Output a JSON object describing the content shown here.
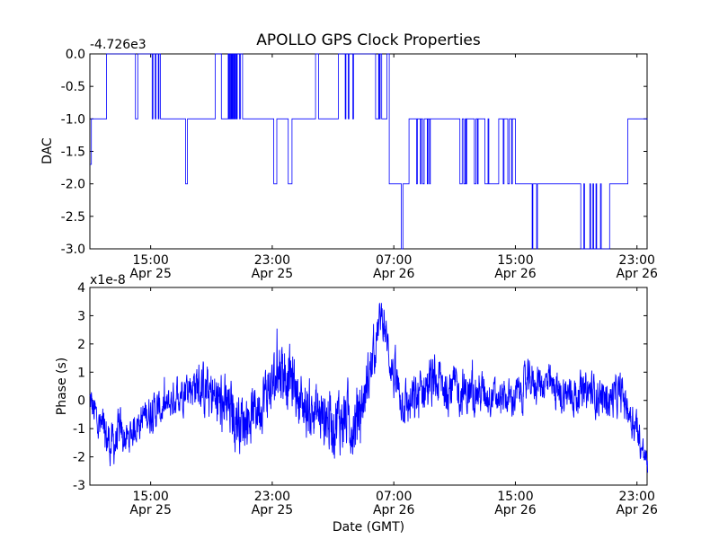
{
  "figure": {
    "title": "APOLLO GPS Clock Properties",
    "xlabel": "Date (GMT)"
  },
  "chart_data": [
    {
      "type": "line",
      "ylabel": "DAC",
      "offset_label": "-4.726e3",
      "xlim": [
        "2024-04-25T11:00:00Z",
        "2024-04-26T23:40:00Z"
      ],
      "ylim": [
        -3.0,
        0.0
      ],
      "yticks": [
        "-3.0",
        "-2.5",
        "-2.0",
        "-1.5",
        "-1.0",
        "-0.5",
        "0.0"
      ],
      "xticks": [
        {
          "time": "15:00",
          "date": "Apr 25"
        },
        {
          "time": "23:00",
          "date": "Apr 25"
        },
        {
          "time": "07:00",
          "date": "Apr 26"
        },
        {
          "time": "15:00",
          "date": "Apr 26"
        },
        {
          "time": "23:00",
          "date": "Apr 26"
        }
      ],
      "color": "#0000ff",
      "series_x_hours_from_11": [
        0.0,
        0.1,
        0.25,
        0.35,
        1.0,
        1.1,
        2.9,
        3.0,
        3.1,
        3.15,
        3.75,
        4.1,
        4.15,
        4.2,
        4.3,
        4.35,
        4.4,
        4.5,
        4.55,
        4.6,
        4.65,
        5.1,
        5.2,
        5.3,
        5.4,
        5.55,
        5.6,
        5.65,
        6.3,
        6.32,
        6.4,
        6.42,
        8.2,
        8.25,
        8.65,
        9.1,
        9.15,
        9.2,
        9.25,
        9.3,
        9.35,
        9.4,
        9.45,
        9.5,
        9.55,
        9.6,
        9.65,
        9.7,
        9.85,
        9.9,
        10.05,
        12.05,
        12.1,
        12.3,
        13.0,
        13.05,
        13.3,
        14.8,
        14.85,
        15.05,
        15.3,
        16.3,
        16.35,
        16.8,
        16.85,
        17.0,
        17.05,
        17.3,
        17.35,
        18.7,
        18.8,
        18.9,
        19.0,
        19.05,
        19.1,
        19.2,
        19.5,
        19.55,
        19.7,
        20.5,
        20.6,
        21.0,
        21.05,
        21.5,
        21.55,
        21.75,
        21.8,
        21.9,
        22.0,
        22.2,
        22.25,
        22.35,
        22.4,
        24.3,
        24.35,
        24.5,
        24.6,
        24.7,
        24.75,
        24.8,
        25.3,
        25.4,
        25.5,
        25.55,
        26.0,
        26.05,
        26.2,
        26.25,
        26.8,
        26.9,
        27.2,
        27.25,
        27.5,
        27.6,
        27.75,
        27.8,
        28.0,
        28.05,
        29.1,
        29.15,
        29.4,
        29.45,
        29.6,
        29.65,
        29.8,
        29.85,
        30.6,
        30.65,
        32.2,
        32.3,
        32.5,
        32.55,
        32.9,
        32.95,
        33.1,
        33.15,
        33.3,
        33.35,
        33.6,
        33.65,
        34.2,
        34.25,
        34.4,
        34.45,
        34.6,
        34.65,
        35.1,
        35.15,
        35.4,
        35.45,
        35.6,
        35.65,
        35.7,
        35.75,
        36.0,
        36.05,
        36.3,
        36.35,
        36.7
      ],
      "series_y": [
        -1.7,
        -1.0,
        -1.0,
        -1.0,
        -1.0,
        0.0,
        0.0,
        -1.0,
        -1.0,
        0.0,
        0.0,
        -1.0,
        0.0,
        0.0,
        -1.0,
        0.0,
        0.0,
        -1.0,
        0.0,
        0.0,
        -1.0,
        -1.0,
        -1.0,
        -1.0,
        -1.0,
        -1.0,
        -1.0,
        -1.0,
        -2.0,
        -2.0,
        -2.0,
        -1.0,
        -1.0,
        0.0,
        -1.0,
        0.0,
        -1.0,
        0.0,
        -1.0,
        0.0,
        -1.0,
        0.0,
        -1.0,
        0.0,
        -1.0,
        0.0,
        -1.0,
        0.0,
        -1.0,
        0.0,
        -1.0,
        -1.0,
        -2.0,
        -1.0,
        -1.0,
        -2.0,
        -1.0,
        -1.0,
        0.0,
        -1.0,
        -1.0,
        -1.0,
        0.0,
        -1.0,
        0.0,
        -1.0,
        0.0,
        -1.0,
        0.0,
        0.0,
        -1.0,
        -1.0,
        0.0,
        -1.0,
        0.0,
        -1.0,
        -1.0,
        0.0,
        -2.0,
        -3.0,
        -2.0,
        -1.0,
        -1.0,
        -2.0,
        -1.0,
        -2.0,
        -1.0,
        -2.0,
        -1.0,
        -2.0,
        -1.0,
        -2.0,
        -1.0,
        -1.0,
        -2.0,
        -1.0,
        -2.0,
        -1.0,
        -2.0,
        -1.0,
        -2.0,
        -1.0,
        -2.0,
        -1.0,
        -2.0,
        -2.0,
        -1.0,
        -2.0,
        -2.0,
        -1.0,
        -2.0,
        -1.0,
        -2.0,
        -1.0,
        -2.0,
        -1.0,
        -2.0,
        -2.0,
        -3.0,
        -2.0,
        -3.0,
        -2.0,
        -2.0,
        -2.0,
        -2.0,
        -2.0,
        -2.0,
        -2.0,
        -2.0,
        -3.0,
        -2.0,
        -3.0,
        -2.0,
        -3.0,
        -2.0,
        -3.0,
        -2.0,
        -3.0,
        -2.0,
        -3.0,
        -2.0,
        -2.0,
        -2.0,
        -2.0,
        -2.0,
        -2.0,
        -2.0,
        -2.0,
        -1.0,
        -1.0,
        -1.0,
        -1.0,
        -1.0,
        -1.0,
        -1.0,
        -1.0,
        -1.0,
        -1.0,
        -1.0,
        -1.0
      ]
    },
    {
      "type": "line",
      "ylabel": "Phase (s)",
      "offset_label": "x1e-8",
      "xlim": [
        "2024-04-25T11:00:00Z",
        "2024-04-26T23:40:00Z"
      ],
      "ylim": [
        -3,
        4
      ],
      "yticks": [
        "-3",
        "-2",
        "-1",
        "0",
        "1",
        "2",
        "3",
        "4"
      ],
      "xticks": [
        {
          "time": "15:00",
          "date": "Apr 25"
        },
        {
          "time": "23:00",
          "date": "Apr 25"
        },
        {
          "time": "07:00",
          "date": "Apr 26"
        },
        {
          "time": "15:00",
          "date": "Apr 26"
        },
        {
          "time": "23:00",
          "date": "Apr 26"
        }
      ],
      "color": "#0000ff",
      "trend_x_hours_from_11": [
        0,
        0.5,
        1.0,
        1.5,
        2.0,
        2.5,
        3.0,
        3.5,
        4.0,
        5.0,
        6.0,
        7.0,
        8.0,
        9.0,
        10.0,
        11.0,
        11.5,
        12.0,
        12.5,
        13.0,
        13.5,
        14.0,
        15.0,
        16.0,
        17.0,
        17.5,
        18.0,
        18.5,
        19.0,
        19.2,
        19.5,
        20.0,
        20.5,
        21.0,
        21.5,
        22.0,
        23.0,
        24.0,
        25.0,
        26.0,
        27.0,
        28.0,
        29.0,
        30.0,
        31.0,
        32.0,
        33.0,
        34.0,
        35.0,
        35.5,
        36.0,
        36.3,
        36.6,
        36.7
      ],
      "trend_y_e8": [
        0.0,
        -0.8,
        -1.3,
        -1.6,
        -1.2,
        -1.4,
        -0.9,
        -0.6,
        -0.4,
        -0.3,
        0.4,
        0.6,
        0.1,
        -0.3,
        -0.7,
        -0.3,
        0.2,
        0.5,
        1.2,
        0.9,
        0.5,
        -0.2,
        -0.5,
        -0.7,
        -0.6,
        -0.8,
        0.0,
        1.2,
        2.6,
        3.1,
        2.2,
        0.8,
        0.1,
        -0.2,
        0.0,
        0.5,
        0.6,
        0.4,
        0.2,
        0.3,
        0.0,
        0.1,
        0.7,
        0.6,
        0.2,
        0.2,
        0.3,
        0.0,
        0.2,
        -0.4,
        -0.9,
        -1.7,
        -2.1,
        -2.5
      ],
      "noise_amplitude_e8": [
        0.5,
        0.7,
        0.7,
        0.7,
        0.7,
        0.5,
        0.5,
        0.5,
        0.6,
        0.5,
        0.6,
        0.7,
        0.9,
        0.9,
        0.9,
        0.8,
        0.9,
        0.9,
        1.0,
        1.0,
        0.9,
        0.9,
        0.9,
        1.0,
        1.0,
        1.0,
        0.8,
        0.8,
        0.6,
        0.5,
        0.6,
        0.7,
        0.7,
        0.7,
        0.8,
        0.8,
        0.8,
        0.7,
        0.7,
        0.6,
        0.5,
        0.6,
        0.6,
        0.6,
        0.6,
        0.6,
        0.6,
        0.6,
        0.6,
        0.6,
        0.6,
        0.5,
        0.4,
        0.3
      ]
    }
  ]
}
